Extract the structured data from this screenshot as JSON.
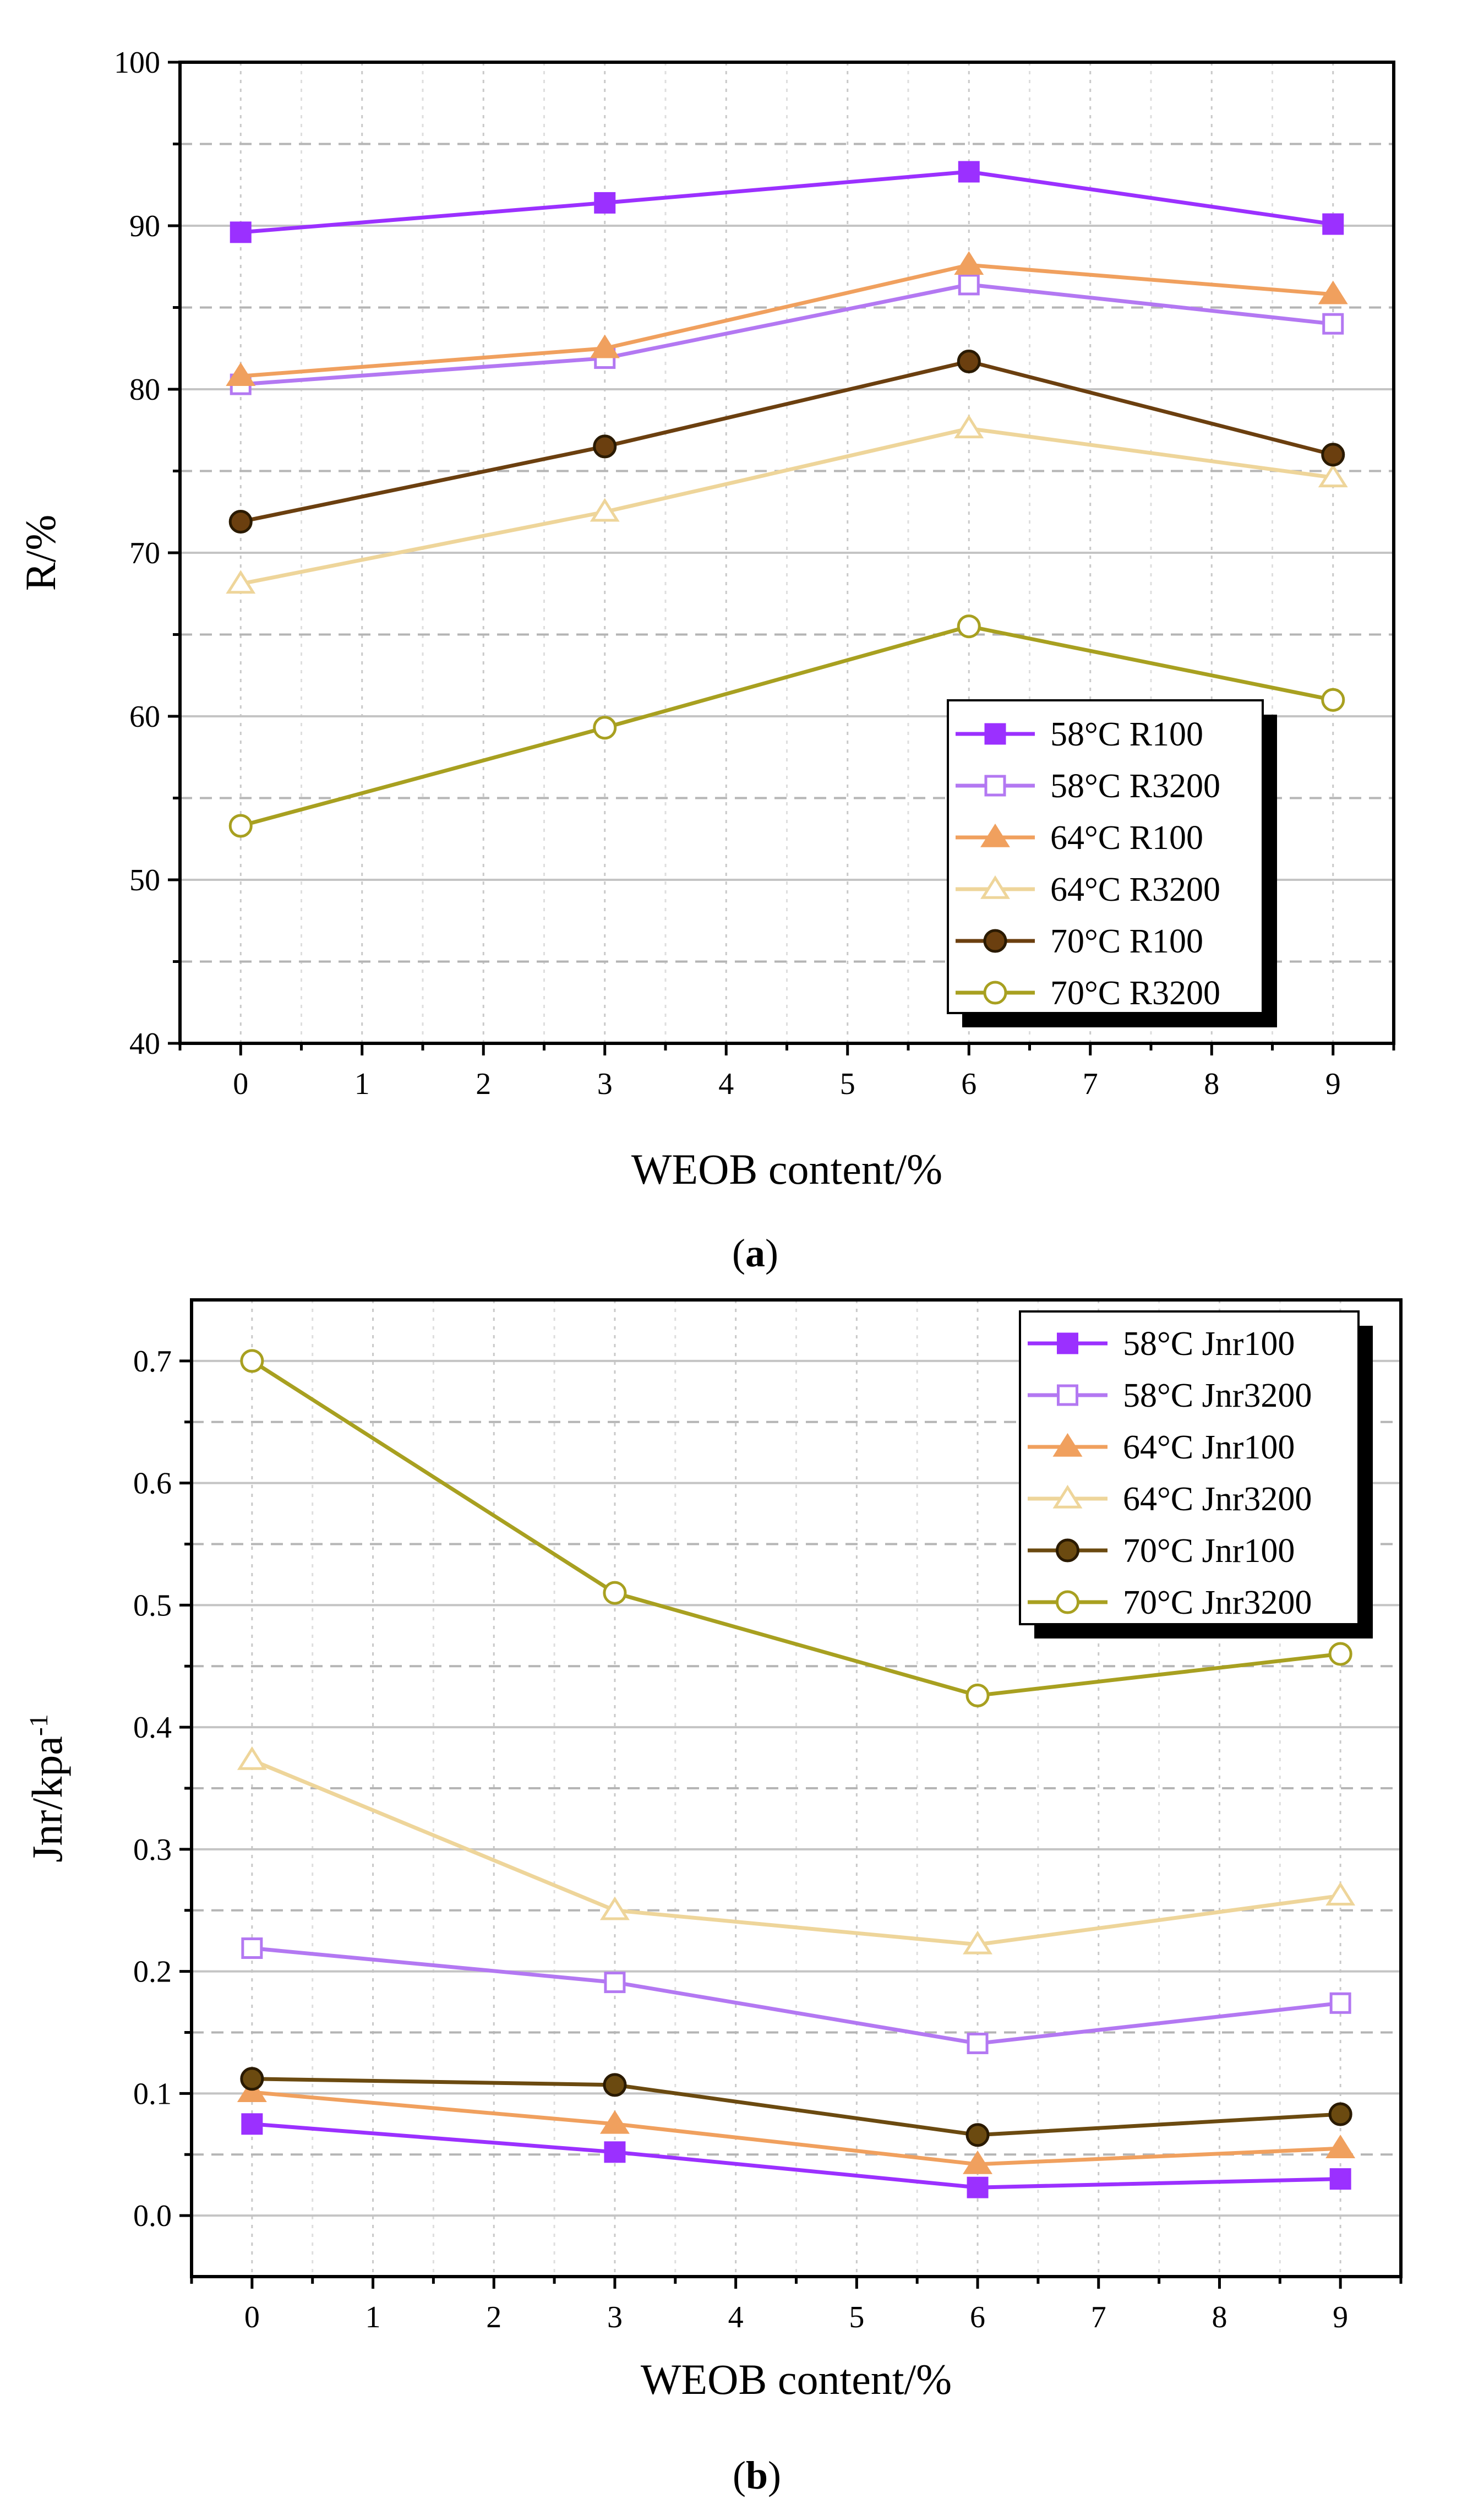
{
  "panels": [
    {
      "caption": {
        "open": "(",
        "letter": "a",
        "close": ")"
      },
      "chart_data": {
        "type": "line",
        "xlabel": "WEOB content/%",
        "ylabel": "R/%",
        "ylabel_superscript": "",
        "xlim": [
          -0.5,
          9.5
        ],
        "ylim": [
          40,
          100
        ],
        "xticks": [
          0,
          1,
          2,
          3,
          4,
          5,
          6,
          7,
          8,
          9
        ],
        "xtick_labels": [
          "0",
          "1",
          "2",
          "3",
          "4",
          "5",
          "6",
          "7",
          "8",
          "9"
        ],
        "yticks": [
          40,
          50,
          60,
          70,
          80,
          90,
          100
        ],
        "ytick_labels": [
          "40",
          "50",
          "60",
          "70",
          "80",
          "90",
          "100"
        ],
        "y_minor_dashed": [
          45,
          55,
          65,
          75,
          85,
          95
        ],
        "grid": true,
        "legend_position": "bottom-right",
        "x": [
          0,
          3,
          6,
          9
        ],
        "series": [
          {
            "name": "58°C R100",
            "values": [
              89.6,
              91.4,
              93.3,
              90.1
            ],
            "color": "#9b30ff",
            "marker": "square",
            "filled": true
          },
          {
            "name": "58°C R3200",
            "values": [
              80.3,
              81.9,
              86.4,
              84.0
            ],
            "color": "#b378f2",
            "marker": "square",
            "filled": false
          },
          {
            "name": "64°C R100",
            "values": [
              80.8,
              82.5,
              87.6,
              85.8
            ],
            "color": "#f0a05e",
            "marker": "triangle",
            "filled": true
          },
          {
            "name": "64°C R3200",
            "values": [
              68.1,
              72.5,
              77.6,
              74.6
            ],
            "color": "#eed59a",
            "marker": "triangle",
            "filled": false
          },
          {
            "name": "70°C R100",
            "values": [
              71.9,
              76.5,
              81.7,
              76.0
            ],
            "color": "#6b3f0f",
            "marker": "circle",
            "filled": true
          },
          {
            "name": "70°C R3200",
            "values": [
              53.3,
              59.3,
              65.5,
              61.0
            ],
            "color": "#a8a020",
            "marker": "circle",
            "filled": false
          }
        ]
      }
    },
    {
      "caption": {
        "open": "(",
        "letter": "b",
        "close": ")"
      },
      "chart_data": {
        "type": "line",
        "xlabel": "WEOB content/%",
        "ylabel": "Jnr/kpa",
        "ylabel_superscript": "-1",
        "xlim": [
          -0.5,
          9.5
        ],
        "ylim": [
          -0.05,
          0.75
        ],
        "xticks": [
          0,
          1,
          2,
          3,
          4,
          5,
          6,
          7,
          8,
          9
        ],
        "xtick_labels": [
          "0",
          "1",
          "2",
          "3",
          "4",
          "5",
          "6",
          "7",
          "8",
          "9"
        ],
        "yticks": [
          0.0,
          0.1,
          0.2,
          0.3,
          0.4,
          0.5,
          0.6,
          0.7
        ],
        "ytick_labels": [
          "0.0",
          "0.1",
          "0.2",
          "0.3",
          "0.4",
          "0.5",
          "0.6",
          "0.7"
        ],
        "y_minor_dashed": [
          0.05,
          0.15,
          0.25,
          0.35,
          0.45,
          0.55,
          0.65
        ],
        "grid": true,
        "legend_position": "top-right",
        "x": [
          0,
          3,
          6,
          9
        ],
        "series": [
          {
            "name": "58°C Jnr100",
            "values": [
              0.075,
              0.052,
              0.023,
              0.03
            ],
            "color": "#9b30ff",
            "marker": "square",
            "filled": true
          },
          {
            "name": "58°C Jnr3200",
            "values": [
              0.219,
              0.191,
              0.141,
              0.174
            ],
            "color": "#b378f2",
            "marker": "square",
            "filled": false
          },
          {
            "name": "64°C Jnr100",
            "values": [
              0.101,
              0.075,
              0.042,
              0.055
            ],
            "color": "#f0a05e",
            "marker": "triangle",
            "filled": true
          },
          {
            "name": "64°C Jnr3200",
            "values": [
              0.373,
              0.25,
              0.222,
              0.262
            ],
            "color": "#eed59a",
            "marker": "triangle",
            "filled": false
          },
          {
            "name": "70°C Jnr100",
            "values": [
              0.112,
              0.107,
              0.066,
              0.083
            ],
            "color": "#6b4a10",
            "marker": "circle",
            "filled": true
          },
          {
            "name": "70°C Jnr3200",
            "values": [
              0.7,
              0.51,
              0.426,
              0.46
            ],
            "color": "#a8a020",
            "marker": "circle",
            "filled": false
          }
        ]
      }
    }
  ]
}
